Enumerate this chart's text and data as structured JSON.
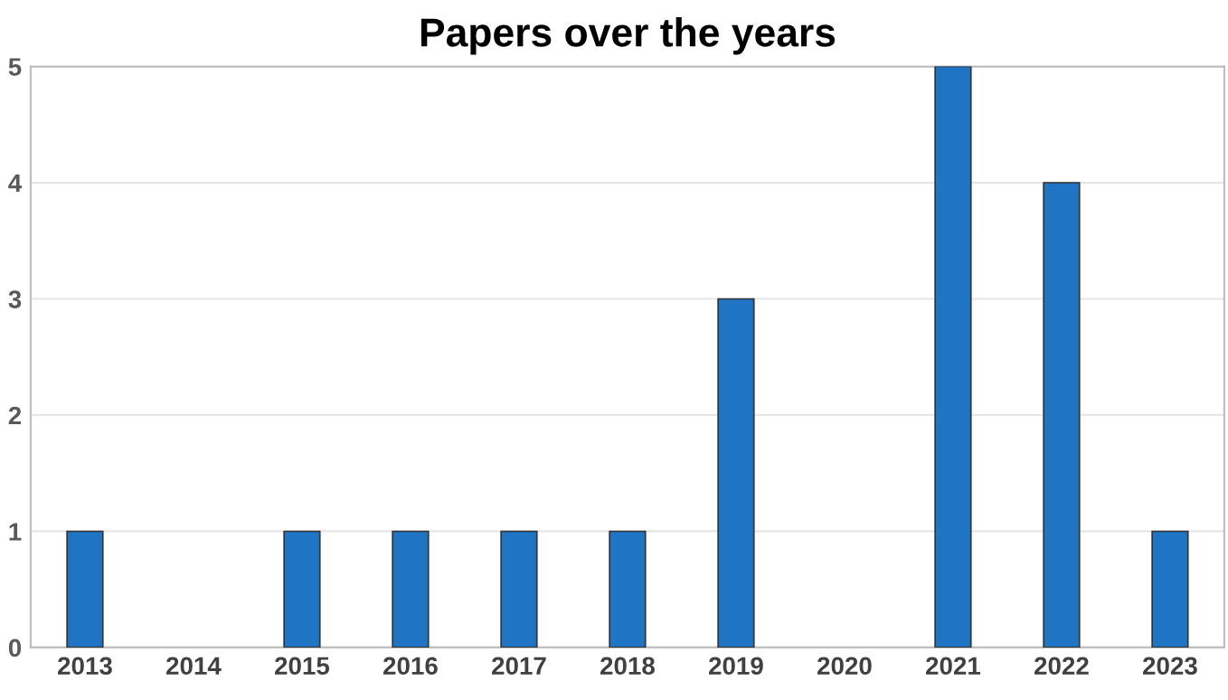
{
  "chart_data": {
    "type": "bar",
    "title": "Papers over the years",
    "categories": [
      "2013",
      "2014",
      "2015",
      "2016",
      "2017",
      "2018",
      "2019",
      "2020",
      "2021",
      "2022",
      "2023"
    ],
    "values": [
      1,
      0,
      1,
      1,
      1,
      1,
      3,
      0,
      5,
      4,
      1
    ],
    "color": "#1f74c4",
    "ylim": [
      0,
      5
    ],
    "yticks": [
      0,
      1,
      2,
      3,
      4,
      5
    ],
    "grid": "y"
  }
}
